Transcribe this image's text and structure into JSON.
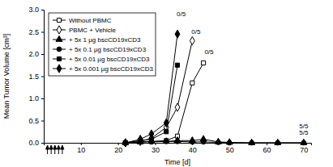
{
  "chart_data": {
    "type": "line",
    "x_label": "Time [d]",
    "y_label": "Mean Tumor Volume [cm³]",
    "x": [
      22,
      26,
      29,
      33,
      36,
      40,
      43,
      47,
      50,
      56,
      63,
      70
    ],
    "series": [
      {
        "name": "Without PBMC",
        "color": "#000000",
        "marker": "square-open",
        "values": [
          0.0,
          0.02,
          0.03,
          0.05,
          0.15,
          1.35,
          1.8,
          null,
          null,
          null,
          null,
          null
        ]
      },
      {
        "name": "PBMC + Vehicle",
        "color": "#000000",
        "marker": "diamond-open",
        "values": [
          0.0,
          0.03,
          0.1,
          0.35,
          0.8,
          2.3,
          null,
          null,
          null,
          null,
          null,
          null
        ]
      },
      {
        "name": "+ 5x 1 µg bscCD19xCD3",
        "color": "#000000",
        "marker": "triangle",
        "values": [
          0.0,
          0.02,
          0.03,
          0.03,
          0.05,
          0.05,
          0.08,
          0.02,
          0.01,
          0.0,
          0.0,
          0.0
        ]
      },
      {
        "name": "+ 5x 0.1 µg bscCD19xCD3",
        "color": "#000000",
        "marker": "circle",
        "values": [
          0.0,
          0.02,
          0.02,
          0.03,
          0.03,
          0.02,
          0.02,
          0.01,
          0.0,
          0.0,
          0.0,
          0.0
        ]
      },
      {
        "name": "+ 5x 0.01 µg bscCD19xCD3",
        "color": "#000000",
        "marker": "square",
        "values": [
          0.0,
          0.05,
          0.08,
          0.25,
          1.75,
          null,
          null,
          null,
          null,
          null,
          null,
          null
        ]
      },
      {
        "name": "+ 5x 0.001 µg bscCD19xCD3",
        "color": "#000000",
        "marker": "diamond",
        "values": [
          0.0,
          0.08,
          0.2,
          0.45,
          2.45,
          null,
          null,
          null,
          null,
          null,
          null,
          null
        ]
      }
    ],
    "annotations": [
      {
        "text": "0/5",
        "x": 37,
        "y": 2.85
      },
      {
        "text": "0/5",
        "x": 41,
        "y": 2.45
      },
      {
        "text": "0/5",
        "x": 44.5,
        "y": 2.0
      },
      {
        "text": "5/5",
        "x": 70,
        "y": 0.32
      },
      {
        "text": "5/5",
        "x": 70,
        "y": 0.18
      }
    ],
    "dose_days": [
      1,
      2,
      3,
      4,
      5
    ],
    "xlim": [
      0,
      72
    ],
    "ylim": [
      0,
      3.0
    ],
    "xticks": [
      10,
      20,
      30,
      40,
      50,
      60,
      70
    ],
    "yticks": [
      {
        "value": 0,
        "label": "0.0"
      },
      {
        "value": 0.5,
        "label": "0.5"
      },
      {
        "value": 1,
        "label": "1.0"
      },
      {
        "value": 1.5,
        "label": "1.5"
      },
      {
        "value": 2,
        "label": "2.0"
      },
      {
        "value": 2.5,
        "label": "2.5"
      },
      {
        "value": 3,
        "label": "3.0"
      }
    ],
    "grid": false,
    "legend": "upper left"
  }
}
